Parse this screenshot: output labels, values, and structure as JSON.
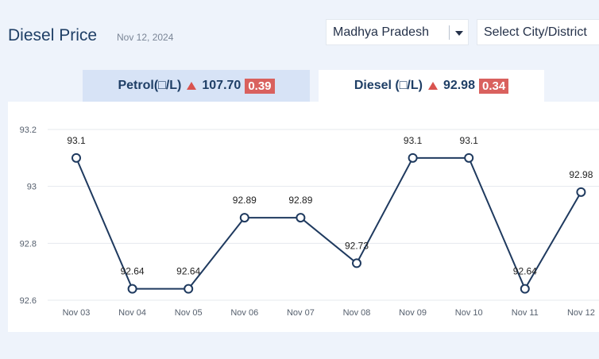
{
  "header": {
    "title": "Diesel Price",
    "date": "Nov 12, 2024",
    "state_select": "Madhya Pradesh",
    "city_select": "Select City/District"
  },
  "tabs": {
    "petrol": {
      "label": "Petrol(□/L)",
      "price": "107.70",
      "change": "0.39"
    },
    "diesel": {
      "label": "Diesel (□/L)",
      "price": "92.98",
      "change": "0.34"
    }
  },
  "colors": {
    "line": "#1f3a5f",
    "up": "#d9534f",
    "badge": "#d9615e"
  },
  "chart_data": {
    "type": "line",
    "categories": [
      "Nov 03",
      "Nov 04",
      "Nov 05",
      "Nov 06",
      "Nov 07",
      "Nov 08",
      "Nov 09",
      "Nov 10",
      "Nov 11",
      "Nov 12"
    ],
    "values": [
      93.1,
      92.64,
      92.64,
      92.89,
      92.89,
      92.73,
      93.1,
      93.1,
      92.64,
      92.98
    ],
    "data_labels": [
      "93.1",
      "92.64",
      "92.64",
      "92.89",
      "92.89",
      "92.73",
      "93.1",
      "93.1",
      "92.64",
      "92.98"
    ],
    "yticks": [
      93.2,
      93,
      92.8,
      92.6
    ],
    "ytick_labels": [
      "93.2",
      "93",
      "92.8",
      "92.6"
    ],
    "ylim": [
      92.6,
      93.2
    ],
    "grid": true
  }
}
